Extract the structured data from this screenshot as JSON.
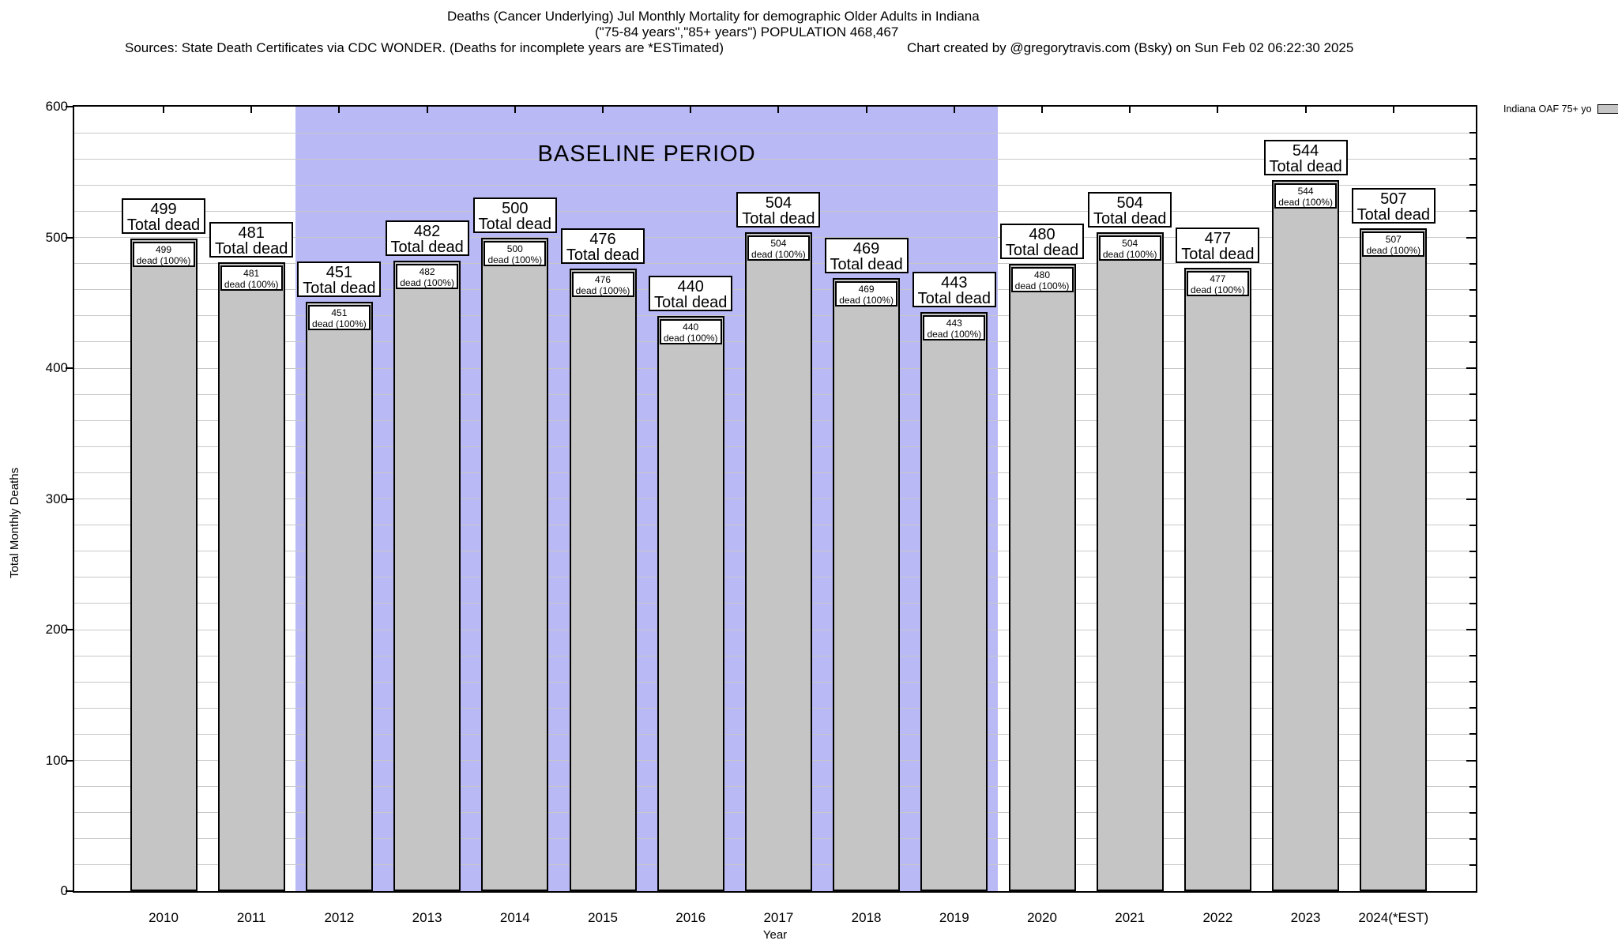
{
  "header": {
    "title_line1": "Deaths (Cancer Underlying) Jul Monthly Mortality for demographic Older Adults in Indiana",
    "title_line2": "(\"75-84 years\",\"85+ years\") POPULATION 468,467",
    "sources_line": "Sources: State Death Certificates via CDC WONDER. (Deaths for incomplete years are *ESTimated)",
    "credit_line": "Chart created by @gregorytravis.com (Bsky) on Sun Feb 02 06:22:30 2025"
  },
  "legend": {
    "label": "Indiana OAF 75+ yo"
  },
  "axes": {
    "ylabel": "Total Monthly Deaths",
    "xlabel": "Year"
  },
  "colors": {
    "background": "#ffffff",
    "band": "#b9b9f6",
    "bar_fill": "#c5c5c5",
    "bar_border": "#000000",
    "gridline": "#c8c8c8",
    "frame": "#000000",
    "text": "#000000"
  },
  "chart_data": {
    "type": "bar",
    "title": "Deaths (Cancer Underlying) Jul Monthly Mortality for demographic Older Adults in Indiana",
    "subtitle": "(\"75-84 years\",\"85+ years\") POPULATION 468,467",
    "xlabel": "Year",
    "ylabel": "Total Monthly Deaths",
    "ylim": [
      0,
      600
    ],
    "y_major_ticks": [
      0,
      100,
      200,
      300,
      400,
      500,
      600
    ],
    "y_minor_step": 20,
    "grid": true,
    "legend_position": "top-right-outside",
    "categories": [
      "2010",
      "2011",
      "2012",
      "2013",
      "2014",
      "2015",
      "2016",
      "2017",
      "2018",
      "2019",
      "2020",
      "2021",
      "2022",
      "2023",
      "2024(*EST)"
    ],
    "series": [
      {
        "name": "Indiana OAF 75+ yo",
        "values": [
          499,
          481,
          451,
          482,
          500,
          476,
          440,
          504,
          469,
          443,
          480,
          504,
          477,
          544,
          507
        ]
      }
    ],
    "bar_top_label_suffix": "Total dead",
    "bar_inner_label_suffix": "dead (100%)",
    "baseline_band": {
      "label": "BASELINE PERIOD",
      "from_category": "2012",
      "to_category": "2019"
    }
  }
}
